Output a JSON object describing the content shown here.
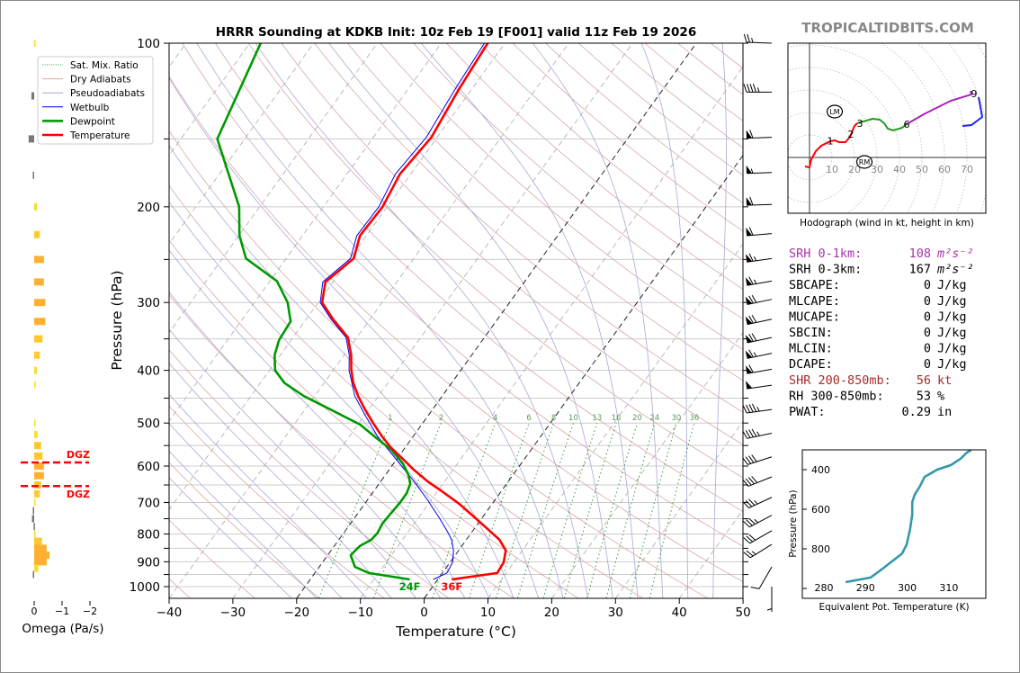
{
  "header": {
    "title": "HRRR Sounding at KDKB Init: 10z Feb 19 [F001] valid 11z Feb 19 2026",
    "watermark": "TROPICALTIDBITS.COM"
  },
  "legend": {
    "items": [
      {
        "label": "Sat. Mix. Ratio",
        "color": "#3a9a3a",
        "style": "dotted"
      },
      {
        "label": "Dry Adiabats",
        "color": "#d9a8a8",
        "style": "solid"
      },
      {
        "label": "Pseudoadiabats",
        "color": "#a8a8d8",
        "style": "solid"
      },
      {
        "label": "Wetbulb",
        "color": "#0000ee",
        "style": "solid"
      },
      {
        "label": "Dewpoint",
        "color": "#009900",
        "style": "thick"
      },
      {
        "label": "Temperature",
        "color": "#ff0000",
        "style": "thick"
      }
    ]
  },
  "chart_data": [
    {
      "type": "line",
      "name": "skew-t",
      "xlabel": "Temperature (°C)",
      "ylabel": "Pressure (hPa)",
      "xlim": [
        -40,
        50
      ],
      "ylim": [
        1050,
        100
      ],
      "xticks": [
        "−40",
        "−30",
        "−20",
        "−10",
        "0",
        "10",
        "20",
        "30",
        "40",
        "50"
      ],
      "yticks": [
        "100",
        "200",
        "300",
        "400",
        "500",
        "600",
        "700",
        "800",
        "900",
        "1000"
      ],
      "isobars": [
        100,
        150,
        200,
        250,
        300,
        350,
        400,
        450,
        500,
        550,
        600,
        650,
        700,
        750,
        800,
        850,
        900,
        950,
        1000
      ],
      "mixing_ratio_labels": [
        "1",
        "2",
        "4",
        "6",
        "8",
        "10",
        "13",
        "16",
        "20",
        "24",
        "30",
        "36"
      ],
      "surface_labels": {
        "dewpoint": "24F",
        "temperature": "36F"
      },
      "temperature": [
        [
          970,
          2.2
        ],
        [
          944,
          8.6
        ],
        [
          902,
          8.4
        ],
        [
          858,
          7.4
        ],
        [
          820,
          5.2
        ],
        [
          790,
          2.7
        ],
        [
          746,
          -1.2
        ],
        [
          704,
          -5.2
        ],
        [
          665,
          -9.6
        ],
        [
          640,
          -12.7
        ],
        [
          609,
          -16.2
        ],
        [
          582,
          -19.1
        ],
        [
          556,
          -22.1
        ],
        [
          529,
          -24.9
        ],
        [
          500,
          -27.8
        ],
        [
          472,
          -30.6
        ],
        [
          446,
          -33.2
        ],
        [
          421,
          -35.5
        ],
        [
          398,
          -37.3
        ],
        [
          375,
          -38.9
        ],
        [
          348,
          -41.4
        ],
        [
          322,
          -45.8
        ],
        [
          300,
          -49.4
        ],
        [
          275,
          -51.2
        ],
        [
          249,
          -49.4
        ],
        [
          226,
          -51.0
        ],
        [
          200,
          -50.7
        ],
        [
          174,
          -51.7
        ],
        [
          149,
          -50.9
        ],
        [
          122,
          -52.0
        ],
        [
          100,
          -52.7
        ]
      ],
      "dewpoint": [
        [
          970,
          -4.4
        ],
        [
          944,
          -11.5
        ],
        [
          920,
          -14.4
        ],
        [
          875,
          -16.4
        ],
        [
          842,
          -16.0
        ],
        [
          820,
          -14.9
        ],
        [
          796,
          -14.7
        ],
        [
          766,
          -15.0
        ],
        [
          732,
          -14.8
        ],
        [
          699,
          -14.6
        ],
        [
          673,
          -14.6
        ],
        [
          647,
          -15.1
        ],
        [
          623,
          -16.4
        ],
        [
          593,
          -18.6
        ],
        [
          560,
          -21.9
        ],
        [
          535,
          -25.3
        ],
        [
          503,
          -29.7
        ],
        [
          474,
          -35.6
        ],
        [
          446,
          -41.7
        ],
        [
          422,
          -46.2
        ],
        [
          400,
          -49.1
        ],
        [
          375,
          -50.9
        ],
        [
          352,
          -51.9
        ],
        [
          325,
          -52.2
        ],
        [
          300,
          -54.8
        ],
        [
          274,
          -58.9
        ],
        [
          249,
          -66.3
        ],
        [
          226,
          -69.9
        ],
        [
          200,
          -73.2
        ],
        [
          150,
          -84.3
        ],
        [
          100,
          -88.3
        ]
      ],
      "wetbulb": [
        [
          970,
          -0.7
        ],
        [
          944,
          0.7
        ],
        [
          902,
          0.4
        ],
        [
          858,
          -0.8
        ],
        [
          820,
          -2.3
        ],
        [
          790,
          -4.0
        ],
        [
          746,
          -6.8
        ],
        [
          691,
          -10.7
        ],
        [
          640,
          -14.8
        ],
        [
          582,
          -20.2
        ],
        [
          529,
          -25.6
        ],
        [
          481,
          -30.2
        ],
        [
          446,
          -33.7
        ],
        [
          400,
          -37.5
        ],
        [
          375,
          -39.2
        ],
        [
          348,
          -41.7
        ],
        [
          322,
          -46.1
        ],
        [
          300,
          -49.7
        ],
        [
          275,
          -51.6
        ],
        [
          249,
          -49.9
        ],
        [
          226,
          -51.5
        ],
        [
          200,
          -51.3
        ],
        [
          174,
          -52.4
        ],
        [
          149,
          -51.7
        ],
        [
          122,
          -52.6
        ],
        [
          100,
          -53.2
        ]
      ],
      "wind_barbs": [
        {
          "p": 100,
          "dir": 272,
          "spd": 25
        },
        {
          "p": 123,
          "dir": 270,
          "spd": 45
        },
        {
          "p": 149,
          "dir": 268,
          "spd": 60
        },
        {
          "p": 173,
          "dir": 268,
          "spd": 55
        },
        {
          "p": 198,
          "dir": 268,
          "spd": 60
        },
        {
          "p": 224,
          "dir": 265,
          "spd": 60
        },
        {
          "p": 249,
          "dir": 262,
          "spd": 65
        },
        {
          "p": 274,
          "dir": 260,
          "spd": 65
        },
        {
          "p": 296,
          "dir": 258,
          "spd": 70
        },
        {
          "p": 322,
          "dir": 258,
          "spd": 70
        },
        {
          "p": 348,
          "dir": 258,
          "spd": 70
        },
        {
          "p": 372,
          "dir": 258,
          "spd": 65
        },
        {
          "p": 398,
          "dir": 260,
          "spd": 60
        },
        {
          "p": 426,
          "dir": 262,
          "spd": 50
        },
        {
          "p": 472,
          "dir": 262,
          "spd": 45
        },
        {
          "p": 522,
          "dir": 258,
          "spd": 45
        },
        {
          "p": 577,
          "dir": 252,
          "spd": 40
        },
        {
          "p": 628,
          "dir": 248,
          "spd": 40
        },
        {
          "p": 685,
          "dir": 245,
          "spd": 35
        },
        {
          "p": 739,
          "dir": 242,
          "spd": 35
        },
        {
          "p": 789,
          "dir": 240,
          "spd": 30
        },
        {
          "p": 836,
          "dir": 238,
          "spd": 25
        },
        {
          "p": 920,
          "dir": 210,
          "spd": 10
        },
        {
          "p": 1000,
          "dir": 180,
          "spd": 5
        }
      ]
    },
    {
      "type": "bar",
      "name": "omega",
      "xlabel": "Omega (Pa/s)",
      "xticks": [
        {
          "v": 0,
          "label": "0"
        },
        {
          "v": -1,
          "label": "−1"
        },
        {
          "v": -2,
          "label": "−2"
        }
      ],
      "pressure": [
        100,
        125,
        150,
        175,
        200,
        225,
        250,
        275,
        300,
        325,
        350,
        375,
        400,
        425,
        500,
        525,
        550,
        575,
        600,
        625,
        650,
        675,
        700,
        725,
        750,
        775,
        800,
        825,
        850,
        875,
        900,
        925,
        950
      ],
      "values": [
        -0.05,
        0.1,
        0.2,
        0.05,
        -0.1,
        -0.2,
        -0.35,
        -0.35,
        -0.4,
        -0.4,
        -0.3,
        -0.2,
        -0.1,
        -0.05,
        -0.05,
        -0.12,
        -0.25,
        -0.3,
        -0.35,
        -0.35,
        -0.25,
        -0.2,
        -0.02,
        0.05,
        0.08,
        0.02,
        -0.05,
        -0.28,
        -0.45,
        -0.55,
        -0.45,
        -0.15,
        0.05
      ],
      "dgz": {
        "label": "DGZ",
        "top_p": 591,
        "bottom_p": 653,
        "color": "#ff0000"
      }
    },
    {
      "type": "line",
      "name": "hodograph",
      "xlabel": "Hodograph (wind in kt, height in km)",
      "ring_labels": [
        "10",
        "20",
        "30",
        "40",
        "50",
        "60",
        "70"
      ],
      "segments": [
        {
          "color": "#ff0000",
          "uv": [
            [
              -2,
              -4
            ],
            [
              0,
              -4.4
            ],
            [
              0.8,
              -0.8
            ],
            [
              2.8,
              2.8
            ],
            [
              5.2,
              5.2
            ],
            [
              9.2,
              7.2
            ],
            [
              11.2,
              7.6
            ],
            [
              13.2,
              6.8
            ],
            [
              16,
              6.8
            ],
            [
              18,
              9.2
            ],
            [
              20,
              14
            ],
            [
              21.2,
              15.2
            ]
          ]
        },
        {
          "color": "#229922",
          "uv": [
            [
              21.2,
              15.2
            ],
            [
              24,
              16
            ],
            [
              28,
              17.2
            ],
            [
              31.2,
              16.8
            ],
            [
              33.2,
              15.2
            ],
            [
              34.8,
              12.8
            ],
            [
              37.2,
              12
            ],
            [
              41.2,
              13.2
            ],
            [
              43.2,
              14.8
            ]
          ]
        },
        {
          "color": "#aa22bb",
          "uv": [
            [
              43.2,
              14.8
            ],
            [
              50.8,
              19.2
            ],
            [
              62.8,
              25.2
            ],
            [
              72,
              28
            ],
            [
              71.6,
              29.6
            ]
          ]
        },
        {
          "color": "#2222ee",
          "uv": [
            [
              75.2,
              26.8
            ],
            [
              76.8,
              18
            ],
            [
              72,
              14.4
            ],
            [
              68,
              14
            ]
          ]
        }
      ],
      "height_labels": [
        {
          "label": "1",
          "u": 9.2,
          "v": 7.4
        },
        {
          "label": "2",
          "u": 18.4,
          "v": 10.4
        },
        {
          "label": "3",
          "u": 22.4,
          "v": 15.2
        },
        {
          "label": "6",
          "u": 43.2,
          "v": 14.8
        },
        {
          "label": "9",
          "u": 73.2,
          "v": 28.4
        }
      ],
      "storm_motion": [
        {
          "label": "LM",
          "u": 11.2,
          "v": 20.4
        },
        {
          "label": "RM",
          "u": 24.4,
          "v": -2
        }
      ]
    },
    {
      "type": "line",
      "name": "theta-e",
      "xlabel": "Equivalent Pot. Temperature (K)",
      "ylabel": "Pressure (hPa)",
      "xticks": [
        "280",
        "290",
        "300",
        "310"
      ],
      "yticks": [
        "400",
        "600",
        "800"
      ],
      "xlim": [
        274.8,
        318
      ],
      "ylim": [
        1050,
        300
      ],
      "color": "#3399aa",
      "points": [
        [
          285.2,
          968
        ],
        [
          291.2,
          945
        ],
        [
          293.8,
          905
        ],
        [
          296.6,
          859
        ],
        [
          298.8,
          823
        ],
        [
          299.9,
          777
        ],
        [
          300.7,
          700
        ],
        [
          301.2,
          627
        ],
        [
          301.2,
          564
        ],
        [
          301.8,
          527
        ],
        [
          303.1,
          482
        ],
        [
          304.2,
          436
        ],
        [
          305.3,
          423
        ],
        [
          307.2,
          400
        ],
        [
          310.5,
          377
        ],
        [
          312.8,
          345
        ],
        [
          314.3,
          314
        ],
        [
          315.4,
          300
        ]
      ]
    }
  ],
  "params": [
    {
      "label": "SRH 0-1km:",
      "value": "108",
      "unit": "m²s⁻²",
      "color": "#aa33aa",
      "italic": true
    },
    {
      "label": "SRH 0-3km:",
      "value": "167",
      "unit": "m²s⁻²",
      "color": "#000000",
      "italic": true
    },
    {
      "label": "SBCAPE:",
      "value": "0",
      "unit": "J/kg",
      "color": "#000000"
    },
    {
      "label": "MLCAPE:",
      "value": "0",
      "unit": "J/kg",
      "color": "#000000"
    },
    {
      "label": "MUCAPE:",
      "value": "0",
      "unit": "J/kg",
      "color": "#000000"
    },
    {
      "label": "SBCIN:",
      "value": "0",
      "unit": "J/kg",
      "color": "#000000"
    },
    {
      "label": "MLCIN:",
      "value": "0",
      "unit": "J/kg",
      "color": "#000000"
    },
    {
      "label": "DCAPE:",
      "value": "0",
      "unit": "J/kg",
      "color": "#000000"
    },
    {
      "label": "SHR 200-850mb:",
      "value": "56",
      "unit": "kt",
      "color": "#aa2a2a"
    },
    {
      "label": "RH 300-850mb:",
      "value": "53",
      "unit": "%",
      "color": "#000000"
    },
    {
      "label": "PWAT:",
      "value": "0.29",
      "unit": "in",
      "color": "#000000"
    }
  ]
}
